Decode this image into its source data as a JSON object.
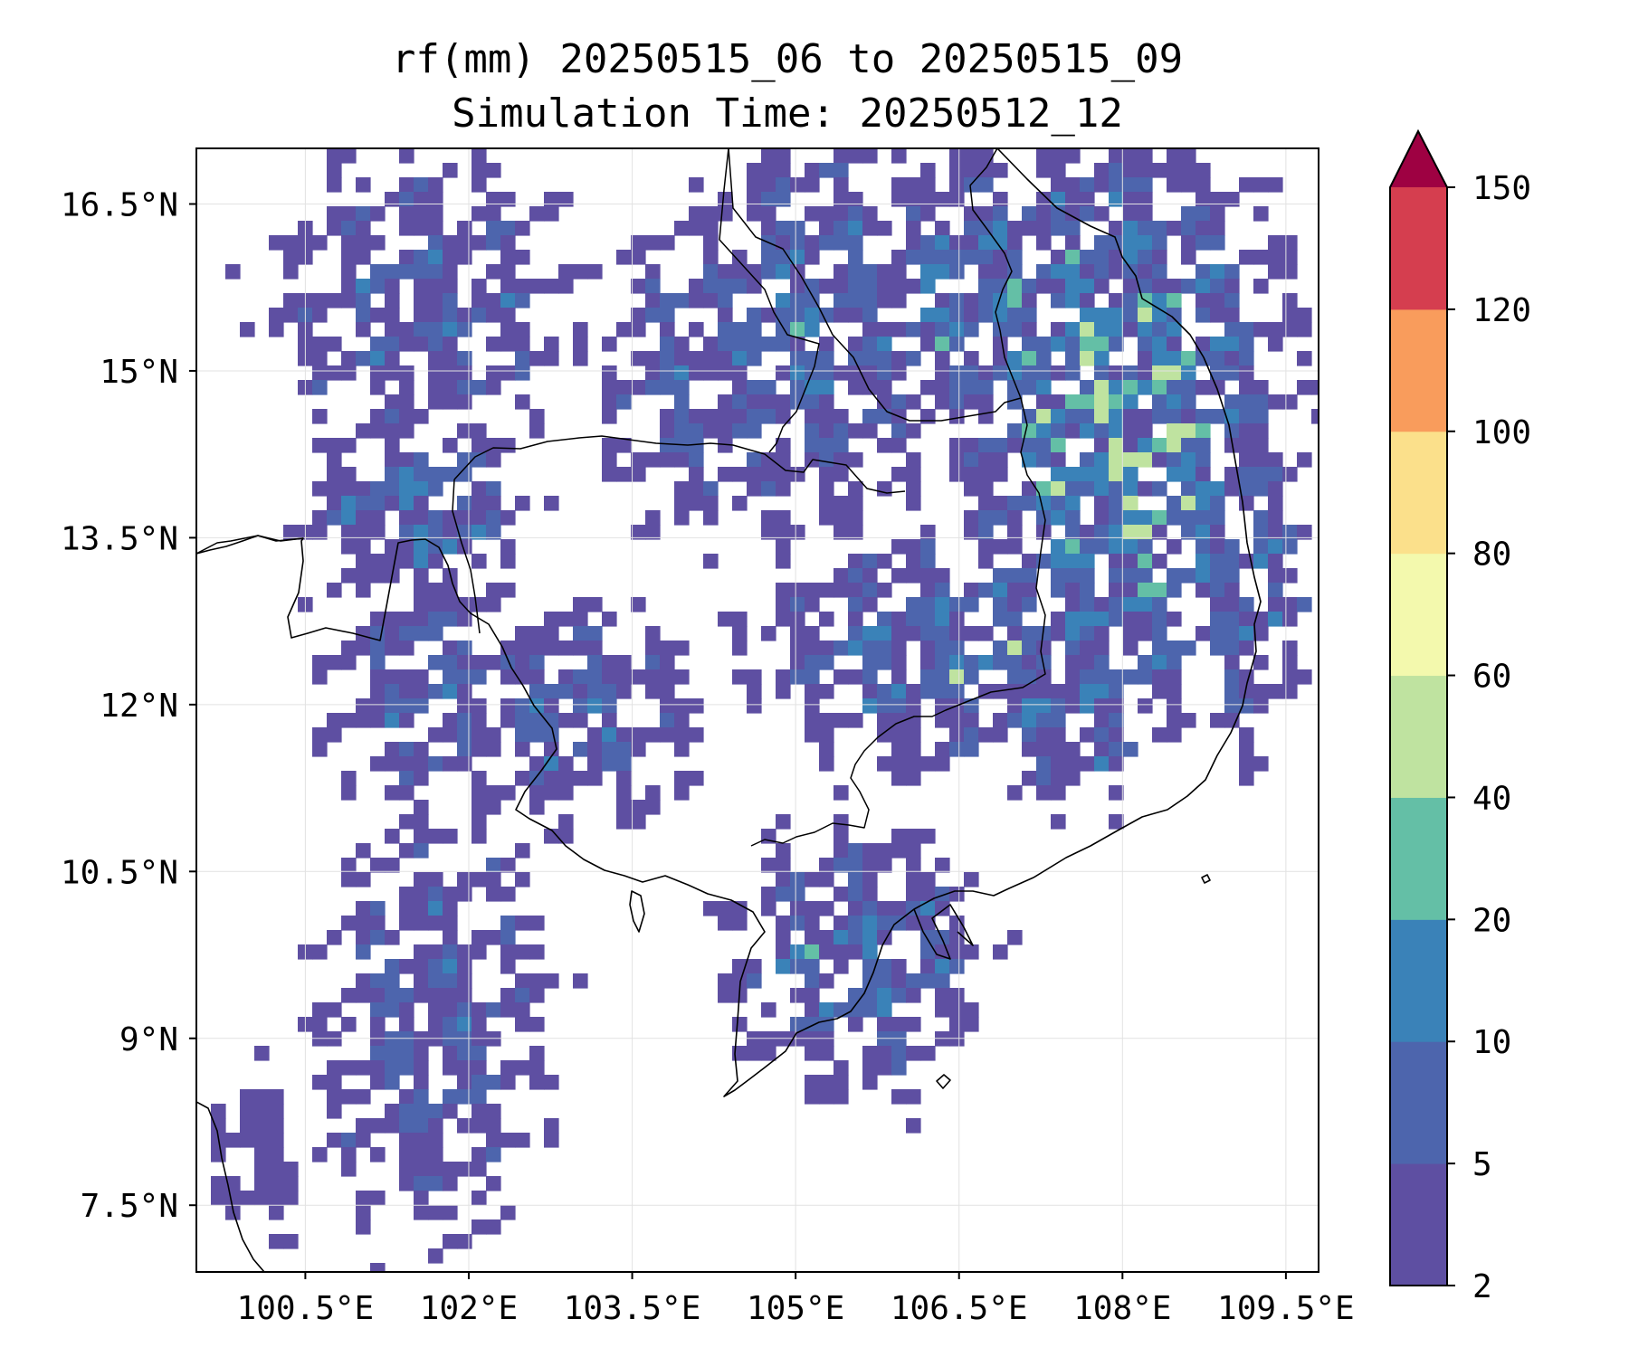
{
  "title": {
    "line1": "rf(mm) 20250515_06 to 20250515_09",
    "line2": "Simulation Time: 20250512_12"
  },
  "map": {
    "lon_range": [
      99.5,
      109.8
    ],
    "lat_range": [
      6.9,
      17.0
    ],
    "lon_ticks": [
      100.5,
      102,
      103.5,
      105,
      106.5,
      108,
      109.5
    ],
    "lon_tick_labels": [
      "100.5°E",
      "102°E",
      "103.5°E",
      "105°E",
      "106.5°E",
      "108°E",
      "109.5°E"
    ],
    "lat_ticks": [
      16.5,
      15,
      13.5,
      12,
      10.5,
      9,
      7.5
    ],
    "lat_tick_labels": [
      "16.5°N",
      "15°N",
      "13.5°N",
      "12°N",
      "10.5°N",
      "9°N",
      "7.5°N"
    ],
    "grid": true,
    "coastlines": true,
    "borders": true,
    "field": "rf(mm)"
  },
  "colorbar": {
    "levels": [
      2,
      5,
      10,
      20,
      40,
      60,
      80,
      100,
      120,
      150
    ],
    "level_labels": [
      "2",
      "5",
      "10",
      "20",
      "40",
      "60",
      "80",
      "100",
      "120",
      "150"
    ],
    "colors": [
      "#5e4fa2",
      "#4d65ad",
      "#3a82b8",
      "#64bfa6",
      "#bfe3a0",
      "#f3f9ad",
      "#fbe08b",
      "#f99c5c",
      "#d53e4f"
    ],
    "extend_color": "#9e0142",
    "extend": "max"
  }
}
